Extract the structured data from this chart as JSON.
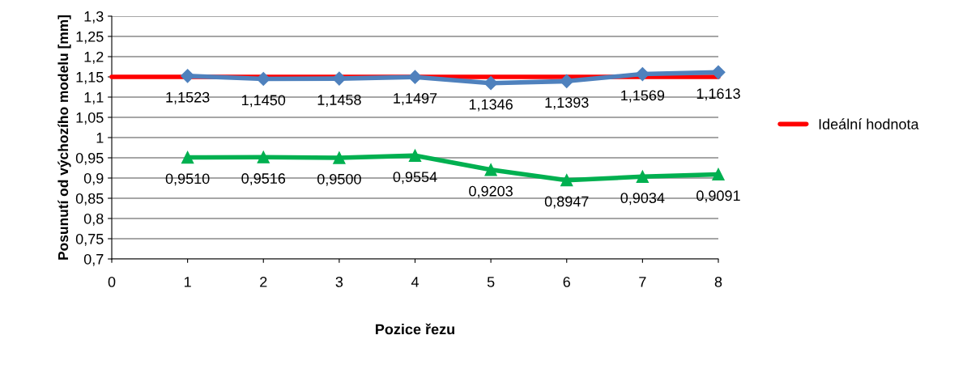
{
  "chart_data": {
    "type": "line",
    "xlabel": "Pozice řezu",
    "ylabel": "Posunutí od výchozího modelu [mm]",
    "xlim": [
      0,
      8
    ],
    "xticks": [
      0,
      1,
      2,
      3,
      4,
      5,
      6,
      7,
      8
    ],
    "ylim": [
      0.7,
      1.3
    ],
    "yticks": [
      {
        "value": 0.7,
        "label": "0,7"
      },
      {
        "value": 0.75,
        "label": "0,75"
      },
      {
        "value": 0.8,
        "label": "0,8"
      },
      {
        "value": 0.85,
        "label": "0,85"
      },
      {
        "value": 0.9,
        "label": "0,9"
      },
      {
        "value": 0.95,
        "label": "0,95"
      },
      {
        "value": 1,
        "label": "1"
      },
      {
        "value": 1.05,
        "label": "1,05"
      },
      {
        "value": 1.1,
        "label": "1,1"
      },
      {
        "value": 1.15,
        "label": "1,15"
      },
      {
        "value": 1.2,
        "label": "1,2"
      },
      {
        "value": 1.25,
        "label": "1,25"
      },
      {
        "value": 1.3,
        "label": "1,3"
      }
    ],
    "grid": "y",
    "legend": "right",
    "series": [
      {
        "name": "Ideální hodnota",
        "color": "#ff0000",
        "x": [
          0,
          8
        ],
        "values": [
          1.15,
          1.15
        ],
        "marker": "none"
      },
      {
        "color": "#4f81bd",
        "x": [
          1,
          2,
          3,
          4,
          5,
          6,
          7,
          8
        ],
        "values": [
          1.1523,
          1.145,
          1.1458,
          1.1497,
          1.1346,
          1.1393,
          1.1569,
          1.1613
        ],
        "marker": "diamond",
        "value_labels": [
          "1,1523",
          "1,1450",
          "1,1458",
          "1,1497",
          "1,1346",
          "1,1393",
          "1,1569",
          "1,1613"
        ]
      },
      {
        "color": "#00b050",
        "x": [
          1,
          2,
          3,
          4,
          5,
          6,
          7,
          8
        ],
        "values": [
          0.951,
          0.9516,
          0.95,
          0.9554,
          0.9203,
          0.8947,
          0.9034,
          0.9091
        ],
        "marker": "triangle",
        "value_labels": [
          "0,9510",
          "0,9516",
          "0,9500",
          "0,9554",
          "0,9203",
          "0,8947",
          "0,9034",
          "0,9091"
        ]
      }
    ]
  }
}
